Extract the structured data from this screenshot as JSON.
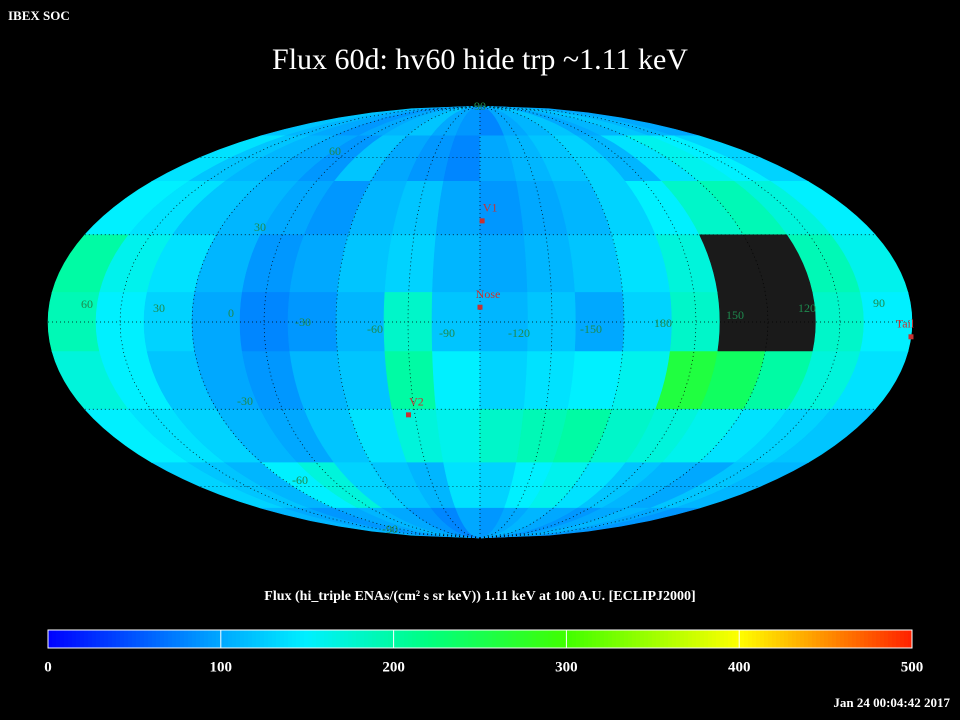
{
  "header": {
    "app": "IBEX SOC",
    "title": "Flux   60d: hv60 hide trp ~1.11 keV",
    "timestamp": "Jan 24 00:04:42 2017"
  },
  "chart_data": {
    "type": "skymap",
    "colorbar_label": "Flux (hi_triple ENAs/(cm² s sr keV))  1.11 keV at 100 A.U. [ECLIPJ2000]",
    "clim": [
      0,
      500
    ],
    "cticks": [
      0,
      100,
      200,
      300,
      400,
      500
    ],
    "colormap": [
      {
        "value": 0,
        "color": "#0000ff"
      },
      {
        "value": 100,
        "color": "#00a8ff"
      },
      {
        "value": 150,
        "color": "#00f0ff"
      },
      {
        "value": 220,
        "color": "#00ff80"
      },
      {
        "value": 300,
        "color": "#40ff00"
      },
      {
        "value": 400,
        "color": "#ffff00"
      },
      {
        "value": 500,
        "color": "#ff2000"
      }
    ],
    "center_lon": 256,
    "lon_labels": [
      "60",
      "30",
      "0",
      "-30",
      "-60",
      "-90",
      "-120",
      "-150",
      "180",
      "150",
      "120",
      "90"
    ],
    "lat_labels": [
      "90",
      "60",
      "30",
      "-30",
      "-60",
      "-90"
    ],
    "markers": [
      {
        "name": "Nose",
        "lon": 256,
        "lat": 5
      },
      {
        "name": "V1",
        "lon": 255,
        "lat": 35
      },
      {
        "name": "V2",
        "lon": 289,
        "lat": -32
      },
      {
        "name": "Tail",
        "lon": 76,
        "lat": -5
      }
    ],
    "values": [
      [
        120,
        110,
        100,
        90,
        100,
        110,
        120,
        100,
        90,
        80,
        100,
        110,
        120,
        100,
        110,
        120,
        110,
        100
      ],
      [
        140,
        120,
        110,
        100,
        90,
        120,
        100,
        90,
        80,
        100,
        110,
        120,
        130,
        110,
        140,
        160,
        150,
        130
      ],
      [
        150,
        140,
        120,
        110,
        100,
        90,
        110,
        120,
        100,
        90,
        100,
        110,
        130,
        150,
        180,
        190,
        170,
        150
      ],
      [
        200,
        160,
        140,
        110,
        90,
        100,
        120,
        130,
        110,
        100,
        110,
        120,
        140,
        170,
        null,
        null,
        190,
        160
      ],
      [
        190,
        150,
        130,
        100,
        80,
        90,
        110,
        180,
        120,
        110,
        120,
        100,
        130,
        180,
        null,
        null,
        180,
        150
      ],
      [
        170,
        150,
        120,
        100,
        90,
        110,
        120,
        200,
        150,
        130,
        140,
        150,
        160,
        260,
        240,
        200,
        170,
        140
      ],
      [
        150,
        140,
        130,
        110,
        100,
        120,
        140,
        170,
        160,
        180,
        190,
        200,
        180,
        170,
        160,
        140,
        130,
        120
      ],
      [
        130,
        120,
        110,
        150,
        170,
        130,
        120,
        110,
        140,
        130,
        150,
        160,
        140,
        120,
        110,
        100,
        120,
        110
      ],
      [
        110,
        100,
        90,
        100,
        110,
        100,
        90,
        80,
        100,
        90,
        100,
        110,
        100,
        90,
        100,
        110,
        100,
        90
      ]
    ]
  }
}
